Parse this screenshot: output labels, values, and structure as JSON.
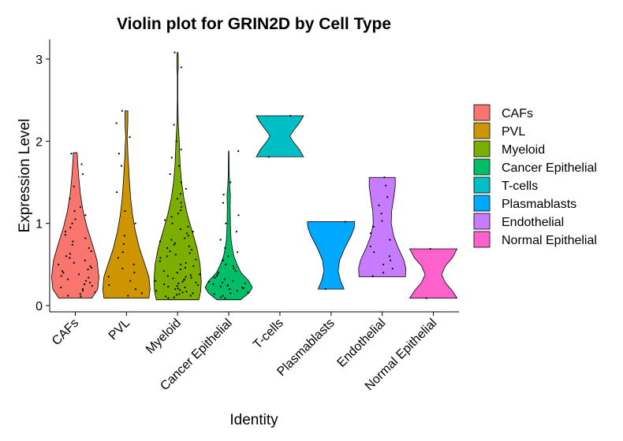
{
  "chart_data": {
    "type": "violin",
    "title": "Violin plot for GRIN2D by Cell Type",
    "xlabel": "Identity",
    "ylabel": "Expression Level",
    "ylim": [
      -0.12,
      3.2
    ],
    "yticks": [
      0,
      1,
      2,
      3
    ],
    "grid": false,
    "legend_position": "right",
    "categories": [
      "CAFs",
      "PVL",
      "Myeloid",
      "Cancer Epithelial",
      "T-cells",
      "Plasmablasts",
      "Endothelial",
      "Normal Epithelial"
    ],
    "series": [
      {
        "name": "CAFs",
        "color": "#F8766D",
        "min": 0.09,
        "max": 1.86,
        "profile": [
          [
            0.09,
            0.7
          ],
          [
            0.2,
            0.95
          ],
          [
            0.35,
            1.0
          ],
          [
            0.55,
            0.92
          ],
          [
            0.75,
            0.72
          ],
          [
            0.95,
            0.5
          ],
          [
            1.15,
            0.33
          ],
          [
            1.35,
            0.22
          ],
          [
            1.55,
            0.15
          ],
          [
            1.75,
            0.1
          ],
          [
            1.86,
            0.08
          ]
        ],
        "points": [
          0.11,
          0.12,
          0.14,
          0.16,
          0.18,
          0.2,
          0.22,
          0.24,
          0.26,
          0.28,
          0.3,
          0.32,
          0.34,
          0.36,
          0.38,
          0.4,
          0.42,
          0.44,
          0.46,
          0.48,
          0.5,
          0.52,
          0.55,
          0.58,
          0.6,
          0.63,
          0.66,
          0.7,
          0.74,
          0.78,
          0.82,
          0.86,
          0.9,
          0.95,
          1.0,
          1.05,
          1.1,
          1.15,
          1.2,
          1.3,
          1.45,
          1.6,
          1.72,
          1.85
        ]
      },
      {
        "name": "PVL",
        "color": "#CD9600",
        "min": 0.09,
        "max": 2.37,
        "profile": [
          [
            0.09,
            0.95
          ],
          [
            0.2,
            1.0
          ],
          [
            0.35,
            0.95
          ],
          [
            0.5,
            0.78
          ],
          [
            0.7,
            0.55
          ],
          [
            0.9,
            0.38
          ],
          [
            1.1,
            0.26
          ],
          [
            1.3,
            0.18
          ],
          [
            1.5,
            0.13
          ],
          [
            1.7,
            0.09
          ],
          [
            1.85,
            0.06
          ],
          [
            1.95,
            0.05
          ],
          [
            2.05,
            0.03
          ],
          [
            2.15,
            0.05
          ],
          [
            2.25,
            0.06
          ],
          [
            2.37,
            0.06
          ]
        ],
        "points": [
          0.12,
          0.15,
          0.2,
          0.25,
          0.3,
          0.35,
          0.4,
          0.45,
          0.5,
          0.58,
          0.65,
          0.75,
          0.85,
          1.0,
          1.15,
          1.38,
          1.7,
          1.85,
          2.05,
          2.22,
          2.37
        ]
      },
      {
        "name": "Myeloid",
        "color": "#7CAE00",
        "min": 0.07,
        "max": 3.08,
        "profile": [
          [
            0.07,
            0.9
          ],
          [
            0.18,
            0.98
          ],
          [
            0.3,
            1.0
          ],
          [
            0.5,
            0.95
          ],
          [
            0.7,
            0.82
          ],
          [
            0.9,
            0.62
          ],
          [
            1.1,
            0.42
          ],
          [
            1.3,
            0.27
          ],
          [
            1.5,
            0.17
          ],
          [
            1.7,
            0.11
          ],
          [
            1.9,
            0.08
          ],
          [
            2.0,
            0.07
          ],
          [
            2.2,
            0.03
          ],
          [
            2.5,
            0.01
          ],
          [
            2.8,
            0.01
          ],
          [
            2.9,
            0.03
          ],
          [
            3.0,
            0.03
          ],
          [
            3.08,
            0.02
          ]
        ],
        "points": [
          0.09,
          0.1,
          0.11,
          0.12,
          0.13,
          0.14,
          0.15,
          0.16,
          0.17,
          0.18,
          0.19,
          0.2,
          0.21,
          0.22,
          0.23,
          0.24,
          0.25,
          0.26,
          0.27,
          0.28,
          0.29,
          0.3,
          0.31,
          0.32,
          0.33,
          0.34,
          0.35,
          0.36,
          0.37,
          0.38,
          0.4,
          0.42,
          0.44,
          0.46,
          0.48,
          0.5,
          0.52,
          0.54,
          0.56,
          0.58,
          0.6,
          0.62,
          0.64,
          0.66,
          0.68,
          0.7,
          0.72,
          0.74,
          0.76,
          0.78,
          0.8,
          0.82,
          0.85,
          0.88,
          0.9,
          0.93,
          0.96,
          1.0,
          1.04,
          1.08,
          1.12,
          1.16,
          1.2,
          1.25,
          1.3,
          1.36,
          1.42,
          1.5,
          1.6,
          1.7,
          1.8,
          1.9,
          2.0,
          2.2,
          2.9,
          3.08
        ]
      },
      {
        "name": "Cancer Epithelial",
        "color": "#00BE67",
        "min": 0.07,
        "max": 1.88,
        "profile": [
          [
            0.07,
            0.5
          ],
          [
            0.15,
            0.85
          ],
          [
            0.22,
            1.0
          ],
          [
            0.3,
            0.85
          ],
          [
            0.4,
            0.52
          ],
          [
            0.5,
            0.35
          ],
          [
            0.6,
            0.22
          ],
          [
            0.7,
            0.15
          ],
          [
            0.8,
            0.1
          ],
          [
            0.9,
            0.08
          ],
          [
            1.0,
            0.07
          ],
          [
            1.2,
            0.06
          ],
          [
            1.35,
            0.07
          ],
          [
            1.45,
            0.04
          ],
          [
            1.6,
            0.02
          ],
          [
            1.88,
            0.01
          ]
        ],
        "points": [
          0.09,
          0.1,
          0.12,
          0.14,
          0.15,
          0.16,
          0.18,
          0.2,
          0.21,
          0.22,
          0.23,
          0.24,
          0.25,
          0.26,
          0.27,
          0.28,
          0.29,
          0.3,
          0.32,
          0.34,
          0.36,
          0.38,
          0.4,
          0.42,
          0.45,
          0.48,
          0.5,
          0.55,
          0.6,
          0.65,
          0.7,
          0.8,
          0.9,
          1.0,
          1.1,
          1.25,
          1.35,
          1.5,
          1.88
        ]
      },
      {
        "name": "T-cells",
        "color": "#00BFC4",
        "min": 1.81,
        "max": 2.31,
        "profile": [
          [
            1.81,
            1.0
          ],
          [
            1.9,
            0.82
          ],
          [
            2.0,
            0.55
          ],
          [
            2.06,
            0.42
          ],
          [
            2.12,
            0.55
          ],
          [
            2.22,
            0.82
          ],
          [
            2.31,
            1.0
          ]
        ],
        "points": [
          1.81,
          2.31
        ]
      },
      {
        "name": "Plasmablasts",
        "color": "#00A9FF",
        "min": 0.2,
        "max": 1.02,
        "profile": [
          [
            0.2,
            0.55
          ],
          [
            0.3,
            0.4
          ],
          [
            0.42,
            0.3
          ],
          [
            0.55,
            0.36
          ],
          [
            0.7,
            0.58
          ],
          [
            0.85,
            0.85
          ],
          [
            0.95,
            0.98
          ],
          [
            1.02,
            1.0
          ]
        ],
        "points": [
          0.2,
          1.02
        ]
      },
      {
        "name": "Endothelial",
        "color": "#C77CFF",
        "min": 0.35,
        "max": 1.56,
        "profile": [
          [
            0.35,
            0.98
          ],
          [
            0.45,
            1.0
          ],
          [
            0.55,
            0.92
          ],
          [
            0.7,
            0.68
          ],
          [
            0.85,
            0.48
          ],
          [
            1.0,
            0.38
          ],
          [
            1.15,
            0.4
          ],
          [
            1.3,
            0.48
          ],
          [
            1.45,
            0.55
          ],
          [
            1.56,
            0.55
          ]
        ],
        "points": [
          0.36,
          0.4,
          0.45,
          0.5,
          0.55,
          0.6,
          0.65,
          0.72,
          0.8,
          0.88,
          0.96,
          1.03,
          1.12,
          1.22,
          1.32,
          1.46,
          1.56
        ]
      },
      {
        "name": "Normal Epithelial",
        "color": "#FF61CC",
        "min": 0.09,
        "max": 0.69,
        "profile": [
          [
            0.09,
            1.0
          ],
          [
            0.18,
            0.8
          ],
          [
            0.28,
            0.5
          ],
          [
            0.38,
            0.35
          ],
          [
            0.48,
            0.5
          ],
          [
            0.58,
            0.8
          ],
          [
            0.69,
            1.0
          ]
        ],
        "points": [
          0.09,
          0.69
        ]
      }
    ]
  }
}
